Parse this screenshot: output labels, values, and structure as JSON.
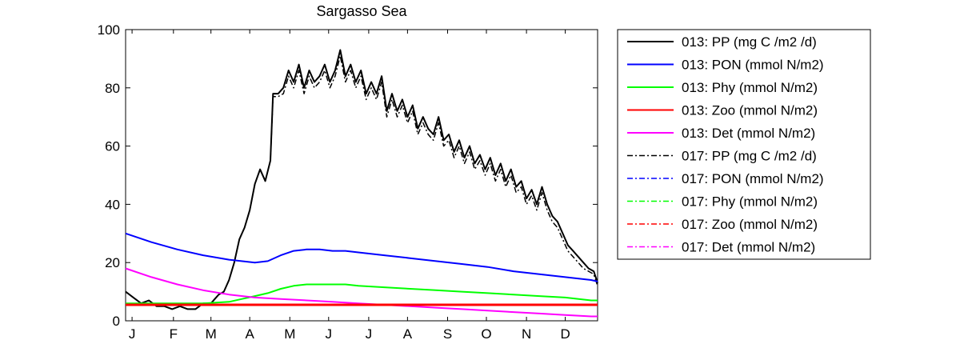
{
  "chart_data": {
    "type": "line",
    "title": "Sargasso Sea",
    "xlabel": "",
    "ylabel": "",
    "xlim": [
      0,
      365
    ],
    "ylim": [
      0,
      100
    ],
    "yticks": [
      0,
      20,
      40,
      60,
      80,
      100
    ],
    "xticks": [
      {
        "label": "J",
        "day": 5
      },
      {
        "label": "F",
        "day": 37
      },
      {
        "label": "M",
        "day": 66
      },
      {
        "label": "A",
        "day": 96
      },
      {
        "label": "M",
        "day": 127
      },
      {
        "label": "J",
        "day": 157
      },
      {
        "label": "J",
        "day": 188
      },
      {
        "label": "A",
        "day": 218
      },
      {
        "label": "S",
        "day": 249
      },
      {
        "label": "O",
        "day": 279
      },
      {
        "label": "N",
        "day": 310
      },
      {
        "label": "D",
        "day": 340
      }
    ],
    "grid": false,
    "legend_position": "outside-right",
    "series": [
      {
        "name": "013: PP (mg C /m2 /d)",
        "color": "#000000",
        "style": "solid",
        "x": [
          0,
          6,
          12,
          18,
          24,
          30,
          36,
          42,
          48,
          54,
          60,
          66,
          72,
          76,
          80,
          84,
          88,
          92,
          96,
          100,
          104,
          108,
          112,
          114,
          118,
          122,
          126,
          130,
          134,
          138,
          142,
          146,
          150,
          154,
          158,
          162,
          166,
          170,
          174,
          178,
          182,
          186,
          190,
          194,
          198,
          202,
          206,
          210,
          214,
          218,
          222,
          226,
          230,
          234,
          238,
          242,
          246,
          250,
          254,
          258,
          262,
          266,
          270,
          274,
          278,
          282,
          286,
          290,
          294,
          298,
          302,
          306,
          310,
          314,
          318,
          322,
          326,
          330,
          334,
          338,
          342,
          346,
          350,
          354,
          358,
          362,
          365
        ],
        "y": [
          10,
          8,
          6,
          7,
          5,
          5,
          4,
          5,
          4,
          4,
          6,
          6,
          9,
          10,
          14,
          20,
          28,
          32,
          38,
          47,
          52,
          48,
          55,
          78,
          78,
          80,
          86,
          82,
          88,
          80,
          86,
          82,
          84,
          88,
          82,
          86,
          93,
          84,
          88,
          82,
          86,
          78,
          82,
          78,
          84,
          72,
          78,
          72,
          76,
          70,
          74,
          66,
          70,
          66,
          64,
          70,
          62,
          64,
          58,
          62,
          56,
          60,
          54,
          57,
          52,
          56,
          50,
          54,
          48,
          52,
          46,
          48,
          42,
          45,
          40,
          46,
          40,
          36,
          34,
          30,
          26,
          24,
          22,
          20,
          18,
          17,
          13
        ]
      },
      {
        "name": "013: PON (mmol N/m2)",
        "color": "#0000ff",
        "style": "solid",
        "x": [
          0,
          20,
          40,
          60,
          80,
          100,
          110,
          120,
          130,
          140,
          150,
          160,
          170,
          180,
          200,
          220,
          240,
          260,
          280,
          300,
          320,
          340,
          360,
          365
        ],
        "y": [
          30,
          27,
          24.5,
          22.5,
          21,
          20,
          20.5,
          22.5,
          24,
          24.5,
          24.5,
          24,
          24,
          23.5,
          22.5,
          21.5,
          20.5,
          19.5,
          18.5,
          17,
          16,
          15,
          14,
          13.5
        ]
      },
      {
        "name": "013: Phy (mmol N/m2)",
        "color": "#00ff00",
        "style": "solid",
        "x": [
          0,
          20,
          40,
          60,
          80,
          90,
          100,
          110,
          120,
          130,
          140,
          150,
          160,
          170,
          180,
          200,
          220,
          240,
          260,
          280,
          300,
          320,
          340,
          360,
          365
        ],
        "y": [
          6,
          6,
          6,
          6,
          6.5,
          7.5,
          8.5,
          9.5,
          11,
          12,
          12.5,
          12.5,
          12.5,
          12.5,
          12,
          11.5,
          11,
          10.5,
          10,
          9.5,
          9,
          8.5,
          8,
          7,
          7
        ]
      },
      {
        "name": "013: Zoo (mmol N/m2)",
        "color": "#ff0000",
        "style": "solid",
        "x": [
          0,
          365
        ],
        "y": [
          5.5,
          5.5
        ]
      },
      {
        "name": "013: Det (mmol N/m2)",
        "color": "#ff00ff",
        "style": "solid",
        "x": [
          0,
          20,
          40,
          60,
          80,
          100,
          120,
          140,
          160,
          180,
          200,
          220,
          240,
          260,
          280,
          300,
          320,
          340,
          360,
          365
        ],
        "y": [
          18,
          15,
          12.5,
          10.5,
          9,
          8,
          7.5,
          7,
          6.5,
          6,
          5.5,
          5,
          4.5,
          4,
          3.5,
          3,
          2.5,
          2,
          1.5,
          1.5
        ]
      },
      {
        "name": "017: PP (mg C /m2 /d)",
        "color": "#000000",
        "style": "dashdot",
        "x": [
          0,
          6,
          12,
          18,
          24,
          30,
          36,
          42,
          48,
          54,
          60,
          66,
          72,
          76,
          80,
          84,
          88,
          92,
          96,
          100,
          104,
          108,
          112,
          114,
          118,
          122,
          126,
          130,
          134,
          138,
          142,
          146,
          150,
          154,
          158,
          162,
          166,
          170,
          174,
          178,
          182,
          186,
          190,
          194,
          198,
          202,
          206,
          210,
          214,
          218,
          222,
          226,
          230,
          234,
          238,
          242,
          246,
          250,
          254,
          258,
          262,
          266,
          270,
          274,
          278,
          282,
          286,
          290,
          294,
          298,
          302,
          306,
          310,
          314,
          318,
          322,
          326,
          330,
          334,
          338,
          342,
          346,
          350,
          354,
          358,
          362,
          365
        ],
        "y": [
          10,
          8,
          6,
          7,
          5,
          5,
          4,
          5,
          4,
          4,
          6,
          6,
          9,
          10,
          14,
          20,
          28,
          32,
          38,
          47,
          52,
          48,
          55,
          77,
          77,
          78,
          84,
          80,
          86,
          78,
          84,
          80,
          82,
          86,
          80,
          84,
          91,
          82,
          86,
          80,
          84,
          76,
          80,
          76,
          82,
          70,
          76,
          70,
          74,
          68,
          72,
          64,
          68,
          64,
          62,
          68,
          60,
          62,
          56,
          60,
          54,
          58,
          52,
          55,
          50,
          54,
          48,
          52,
          46,
          50,
          44,
          46,
          40,
          43,
          38,
          44,
          38,
          34,
          32,
          28,
          24,
          22,
          20,
          18,
          17,
          16,
          12
        ]
      },
      {
        "name": "017: PON (mmol N/m2)",
        "color": "#0000ff",
        "style": "dashdot",
        "x": [
          0,
          365
        ],
        "y": [
          30,
          13.5
        ],
        "hidden": true
      },
      {
        "name": "017: Phy (mmol N/m2)",
        "color": "#00ff00",
        "style": "dashdot",
        "x": [
          0,
          365
        ],
        "y": [
          6,
          7
        ],
        "hidden": true
      },
      {
        "name": "017: Zoo (mmol N/m2)",
        "color": "#ff0000",
        "style": "dashdot",
        "x": [
          0,
          365
        ],
        "y": [
          5.5,
          5.5
        ],
        "hidden": true
      },
      {
        "name": "017: Det (mmol N/m2)",
        "color": "#ff00ff",
        "style": "dashdot",
        "x": [
          0,
          365
        ],
        "y": [
          18,
          1.5
        ],
        "hidden": true
      }
    ]
  }
}
